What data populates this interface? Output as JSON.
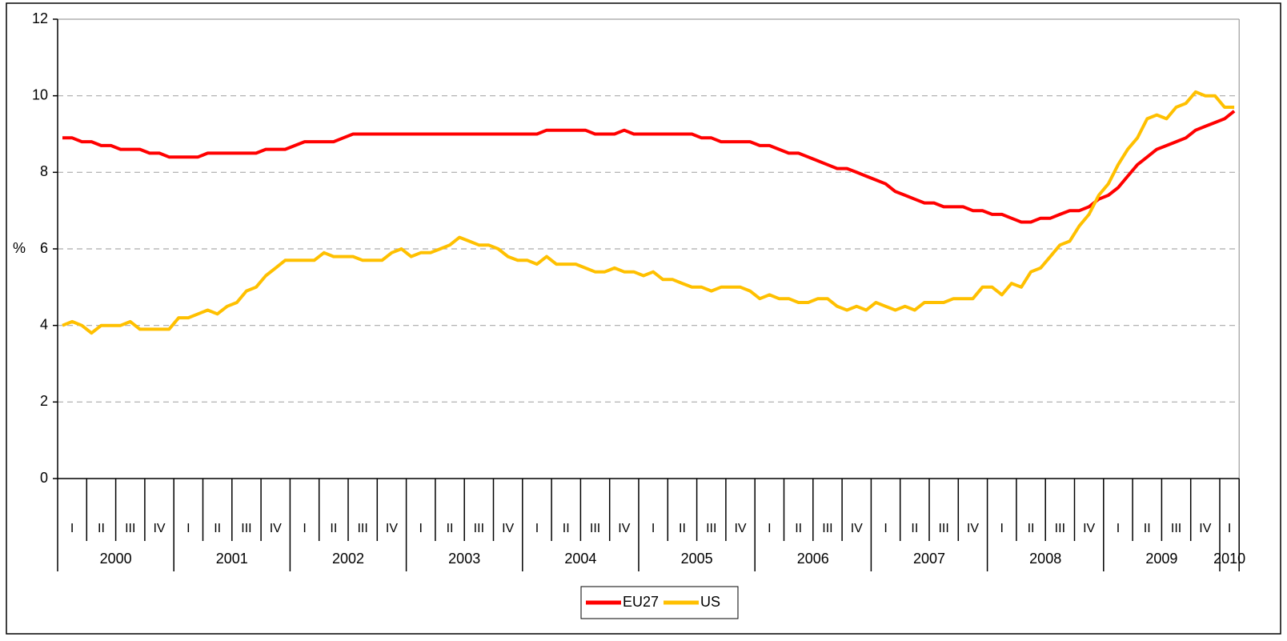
{
  "chart_data": {
    "type": "line",
    "y_label": "%",
    "quarter_labels": [
      "I",
      "II",
      "III",
      "IV",
      "I",
      "II",
      "III",
      "IV",
      "I",
      "II",
      "III",
      "IV",
      "I",
      "II",
      "III",
      "IV",
      "I",
      "II",
      "III",
      "IV",
      "I",
      "II",
      "III",
      "IV",
      "I",
      "II",
      "III",
      "IV",
      "I",
      "II",
      "III",
      "IV",
      "I",
      "II",
      "III",
      "IV",
      "I",
      "II",
      "III",
      "IV",
      "I"
    ],
    "year_labels": [
      "2000",
      "2001",
      "2002",
      "2003",
      "2004",
      "2005",
      "2006",
      "2007",
      "2008",
      "2009",
      "2010"
    ],
    "series": [
      {
        "name": "EU27",
        "color": "#ff0000",
        "values": [
          8.9,
          8.9,
          8.8,
          8.8,
          8.7,
          8.7,
          8.6,
          8.6,
          8.6,
          8.5,
          8.5,
          8.4,
          8.4,
          8.4,
          8.4,
          8.5,
          8.5,
          8.5,
          8.5,
          8.5,
          8.5,
          8.6,
          8.6,
          8.6,
          8.7,
          8.8,
          8.8,
          8.8,
          8.8,
          8.9,
          9.0,
          9.0,
          9.0,
          9.0,
          9.0,
          9.0,
          9.0,
          9.0,
          9.0,
          9.0,
          9.0,
          9.0,
          9.0,
          9.0,
          9.0,
          9.0,
          9.0,
          9.0,
          9.0,
          9.0,
          9.1,
          9.1,
          9.1,
          9.1,
          9.1,
          9.0,
          9.0,
          9.0,
          9.1,
          9.0,
          9.0,
          9.0,
          9.0,
          9.0,
          9.0,
          9.0,
          8.9,
          8.9,
          8.8,
          8.8,
          8.8,
          8.8,
          8.7,
          8.7,
          8.6,
          8.5,
          8.5,
          8.4,
          8.3,
          8.2,
          8.1,
          8.1,
          8.0,
          7.9,
          7.8,
          7.7,
          7.5,
          7.4,
          7.3,
          7.2,
          7.2,
          7.1,
          7.1,
          7.1,
          7.0,
          7.0,
          6.9,
          6.9,
          6.8,
          6.7,
          6.7,
          6.8,
          6.8,
          6.9,
          7.0,
          7.0,
          7.1,
          7.3,
          7.4,
          7.6,
          7.9,
          8.2,
          8.4,
          8.6,
          8.7,
          8.8,
          8.9,
          9.1,
          9.2,
          9.3,
          9.4,
          9.6
        ]
      },
      {
        "name": "US",
        "color": "#ffc000",
        "values": [
          4.0,
          4.1,
          4.0,
          3.8,
          4.0,
          4.0,
          4.0,
          4.1,
          3.9,
          3.9,
          3.9,
          3.9,
          4.2,
          4.2,
          4.3,
          4.4,
          4.3,
          4.5,
          4.6,
          4.9,
          5.0,
          5.3,
          5.5,
          5.7,
          5.7,
          5.7,
          5.7,
          5.9,
          5.8,
          5.8,
          5.8,
          5.7,
          5.7,
          5.7,
          5.9,
          6.0,
          5.8,
          5.9,
          5.9,
          6.0,
          6.1,
          6.3,
          6.2,
          6.1,
          6.1,
          6.0,
          5.8,
          5.7,
          5.7,
          5.6,
          5.8,
          5.6,
          5.6,
          5.6,
          5.5,
          5.4,
          5.4,
          5.5,
          5.4,
          5.4,
          5.3,
          5.4,
          5.2,
          5.2,
          5.1,
          5.0,
          5.0,
          4.9,
          5.0,
          5.0,
          5.0,
          4.9,
          4.7,
          4.8,
          4.7,
          4.7,
          4.6,
          4.6,
          4.7,
          4.7,
          4.5,
          4.4,
          4.5,
          4.4,
          4.6,
          4.5,
          4.4,
          4.5,
          4.4,
          4.6,
          4.6,
          4.6,
          4.7,
          4.7,
          4.7,
          5.0,
          5.0,
          4.8,
          5.1,
          5.0,
          5.4,
          5.5,
          5.8,
          6.1,
          6.2,
          6.6,
          6.9,
          7.4,
          7.7,
          8.2,
          8.6,
          8.9,
          9.4,
          9.5,
          9.4,
          9.7,
          9.8,
          10.1,
          10.0,
          10.0,
          9.7,
          9.7
        ]
      }
    ],
    "ylim": [
      0,
      12
    ],
    "yticks": [
      0,
      2,
      4,
      6,
      8,
      10,
      12
    ],
    "grid": true,
    "legend": "bottom"
  }
}
